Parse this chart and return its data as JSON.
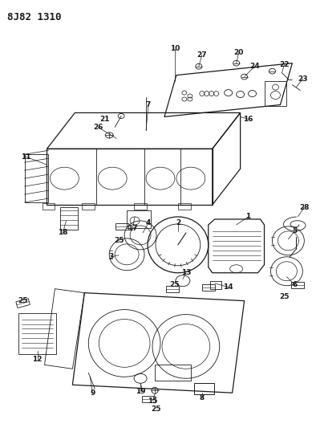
{
  "title": "8J82 1310",
  "bg_color": "#ffffff",
  "line_color": "#1a1a1a",
  "title_fontsize": 9,
  "label_fontsize": 6.5,
  "fig_width": 3.89,
  "fig_height": 5.33,
  "dpi": 100
}
